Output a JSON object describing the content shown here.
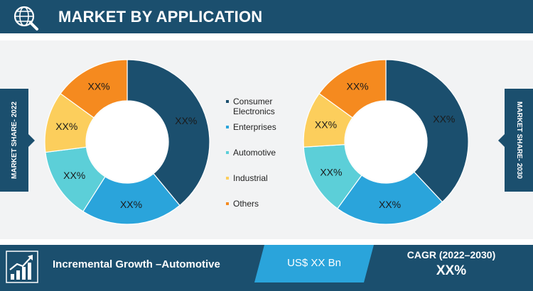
{
  "header": {
    "title": "MARKET BY APPLICATION",
    "icon": "globe-search-icon"
  },
  "side_tabs": {
    "left": "MARKET SHARE- 2022",
    "right": "MARKET SHARE- 2030"
  },
  "colors": {
    "brand": "#1b4f6e",
    "Consumer Electronics": "#1b4f6e",
    "Enterprises": "#2aa4db",
    "Automotive": "#5ccfd8",
    "Industrial": "#fcce5c",
    "Others": "#f58a1f"
  },
  "chart_data": [
    {
      "type": "pie",
      "title": "MARKET SHARE- 2022",
      "categories": [
        "Consumer Electronics",
        "Enterprises",
        "Automotive",
        "Industrial",
        "Others"
      ],
      "values": [
        39,
        20,
        14,
        12,
        15
      ],
      "labels": [
        "XX%",
        "XX%",
        "XX%",
        "XX%",
        "XX%"
      ],
      "donut": true
    },
    {
      "type": "pie",
      "title": "MARKET SHARE- 2030",
      "categories": [
        "Consumer Electronics",
        "Enterprises",
        "Automotive",
        "Industrial",
        "Others"
      ],
      "values": [
        38,
        22,
        14,
        11,
        15
      ],
      "labels": [
        "XX%",
        "XX%",
        "XX%",
        "XX%",
        "XX%"
      ],
      "donut": true
    }
  ],
  "legend": [
    {
      "label": "Consumer\nElectronics",
      "color": "#1b4f6e"
    },
    {
      "label": "Enterprises",
      "color": "#2aa4db"
    },
    {
      "label": "Automotive",
      "color": "#5ccfd8"
    },
    {
      "label": "Industrial",
      "color": "#fcce5c"
    },
    {
      "label": "Others",
      "color": "#f58a1f"
    }
  ],
  "footer": {
    "growth_text": "Incremental Growth –Automotive",
    "value_text": "US$ XX Bn",
    "cagr_label": "CAGR (2022–2030)",
    "cagr_value": "XX%",
    "icon": "growth-chart-icon"
  }
}
